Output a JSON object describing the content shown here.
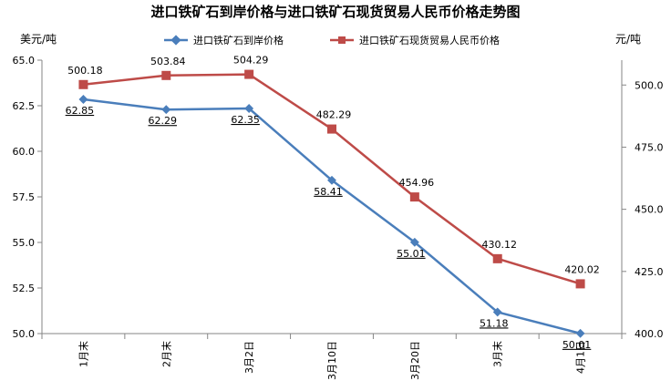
{
  "chart_data": {
    "type": "line",
    "title": "进口铁矿石到岸价格与进口铁矿石现货贸易人民币价格走势图",
    "left_unit": "美元/吨",
    "right_unit": "元/吨",
    "categories": [
      "1月末",
      "2月末",
      "3月2日",
      "3月10日",
      "3月20日",
      "3月末",
      "4月1日"
    ],
    "y_left": {
      "min": 50.0,
      "max": 65.0,
      "ticks": [
        "50.0",
        "52.5",
        "55.0",
        "57.5",
        "60.0",
        "62.5",
        "65.0"
      ]
    },
    "y_right": {
      "min": 400.0,
      "max": 510.0,
      "ticks": [
        "400.0",
        "425.0",
        "450.0",
        "475.0",
        "500.0"
      ]
    },
    "grid": false,
    "legend_position": "top",
    "series": [
      {
        "name": "进口铁矿石到岸价格",
        "axis": "left",
        "color": "#4a7ebb",
        "marker": "diamond",
        "values": [
          62.85,
          62.29,
          62.35,
          58.41,
          55.01,
          51.18,
          50.01
        ],
        "labels": [
          "62.85",
          "62.29",
          "62.35",
          "58.41",
          "55.01",
          "51.18",
          "50.01"
        ]
      },
      {
        "name": "进口铁矿石现货贸易人民币价格",
        "axis": "right",
        "color": "#be4b48",
        "marker": "square",
        "values": [
          500.18,
          503.84,
          504.29,
          482.29,
          454.96,
          430.12,
          420.02
        ],
        "labels": [
          "500.18",
          "503.84",
          "504.29",
          "482.29",
          "454.96",
          "430.12",
          "420.02"
        ]
      }
    ]
  }
}
